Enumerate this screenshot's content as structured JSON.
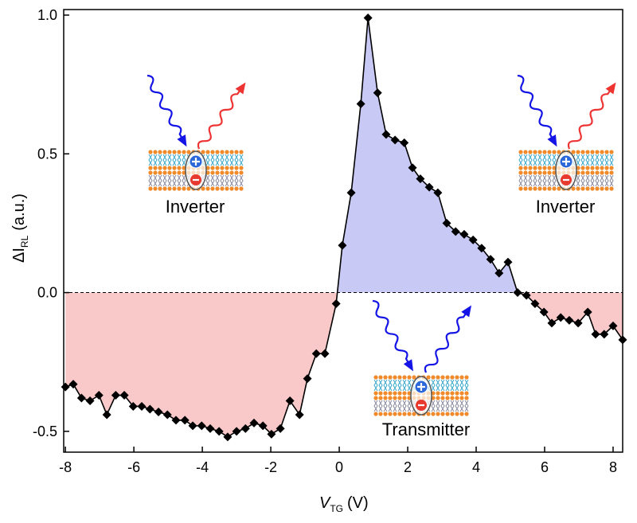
{
  "chart_data": {
    "type": "line",
    "x_label": [
      "V",
      "TG",
      "(V)"
    ],
    "y_label": [
      "ΔI",
      "RL",
      "(a.u.)"
    ],
    "x": [
      -8.0,
      -7.77,
      -7.53,
      -7.28,
      -7.02,
      -6.79,
      -6.53,
      -6.28,
      -6.02,
      -5.77,
      -5.53,
      -5.28,
      -5.02,
      -4.77,
      -4.51,
      -4.28,
      -4.02,
      -3.77,
      -3.51,
      -3.26,
      -3.0,
      -2.74,
      -2.49,
      -2.23,
      -1.98,
      -1.72,
      -1.44,
      -1.16,
      -0.93,
      -0.67,
      -0.42,
      -0.09,
      0.09,
      0.35,
      0.63,
      0.84,
      1.12,
      1.37,
      1.63,
      1.9,
      2.14,
      2.37,
      2.63,
      2.88,
      3.14,
      3.4,
      3.65,
      3.91,
      4.16,
      4.42,
      4.67,
      4.93,
      5.21,
      5.47,
      5.72,
      5.98,
      6.21,
      6.47,
      6.72,
      6.98,
      7.26,
      7.49,
      7.74,
      8.0,
      8.28
    ],
    "values": [
      -0.34,
      -0.33,
      -0.38,
      -0.39,
      -0.37,
      -0.44,
      -0.37,
      -0.37,
      -0.41,
      -0.41,
      -0.42,
      -0.43,
      -0.44,
      -0.46,
      -0.46,
      -0.48,
      -0.48,
      -0.49,
      -0.5,
      -0.52,
      -0.5,
      -0.49,
      -0.47,
      -0.48,
      -0.51,
      -0.49,
      -0.39,
      -0.44,
      -0.31,
      -0.22,
      -0.22,
      -0.04,
      0.17,
      0.36,
      0.68,
      0.99,
      0.72,
      0.57,
      0.55,
      0.54,
      0.45,
      0.41,
      0.38,
      0.36,
      0.25,
      0.22,
      0.21,
      0.19,
      0.16,
      0.12,
      0.07,
      0.11,
      0.0,
      -0.01,
      -0.04,
      -0.07,
      -0.11,
      -0.09,
      -0.1,
      -0.11,
      -0.07,
      -0.15,
      -0.15,
      -0.12,
      -0.17
    ],
    "color": "#000000",
    "fill_colors": {
      "above": "#c9c9f6",
      "below": "#f9c9c9"
    },
    "reference_line": 0,
    "xlim": [
      -8.05,
      8.28
    ],
    "ylim": [
      -0.575,
      1.02
    ],
    "xticks": [
      -8,
      -6,
      -4,
      -2,
      0,
      2,
      4,
      6,
      8
    ],
    "yticks": [
      -0.5,
      {
        "value": 0,
        "label": "0.0"
      },
      0.5,
      {
        "value": 1,
        "label": "1.0"
      }
    ],
    "annotations": [
      "Inverter",
      "Inverter",
      "Transmitter"
    ]
  }
}
